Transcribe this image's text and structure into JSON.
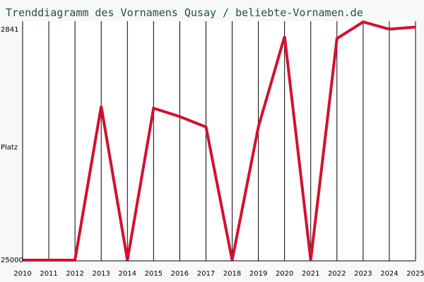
{
  "colors": {
    "background": "#f8f8f8",
    "plot_background": "#ffffff",
    "title": "#1f4f4f",
    "line": "#d4102e",
    "grid": "#000000"
  },
  "chart_data": {
    "type": "line",
    "title": "Trenddiagramm des Vornamens Qusay / beliebte-Vornamen.de",
    "xlabel": "",
    "ylabel": "Platz",
    "x": [
      2010,
      2011,
      2012,
      2013,
      2014,
      2015,
      2016,
      2017,
      2018,
      2019,
      2020,
      2021,
      2022,
      2023,
      2024,
      2025
    ],
    "x_tick_labels": [
      "2010",
      "2011",
      "2012",
      "2013",
      "2014",
      "2015",
      "2016",
      "2017",
      "2018",
      "2019",
      "2020",
      "2021",
      "2022",
      "2023",
      "2024",
      "2025"
    ],
    "y_tick_labels": [
      "2841",
      "25000"
    ],
    "ylim": [
      2841,
      25000
    ],
    "y_inverted": true,
    "grid": true,
    "series": [
      {
        "values": [
          25000,
          25000,
          25000,
          10200,
          25000,
          10400,
          11200,
          12200,
          25000,
          12200,
          3500,
          25000,
          3700,
          2100,
          2800,
          2600
        ]
      }
    ]
  }
}
